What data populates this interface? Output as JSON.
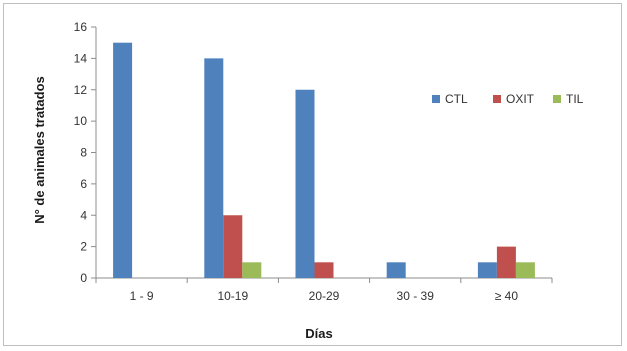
{
  "chart_data": {
    "type": "bar",
    "title": "",
    "xlabel": "Días",
    "ylabel": "N° de animales tratados",
    "categories": [
      "1 - 9",
      "10-19",
      "20-29",
      "30 - 39",
      "≥ 40"
    ],
    "series": [
      {
        "name": "CTL",
        "color": "#4f81bd",
        "values": [
          15,
          14,
          12,
          1,
          1
        ]
      },
      {
        "name": "OXIT",
        "color": "#c0504d",
        "values": [
          0,
          4,
          1,
          0,
          2
        ]
      },
      {
        "name": "TIL",
        "color": "#9bbb59",
        "values": [
          0,
          1,
          0,
          0,
          1
        ]
      }
    ],
    "ylim": [
      0,
      16
    ],
    "yticks": [
      0,
      2,
      4,
      6,
      8,
      10,
      12,
      14,
      16
    ],
    "grid": false,
    "legend": "right"
  }
}
